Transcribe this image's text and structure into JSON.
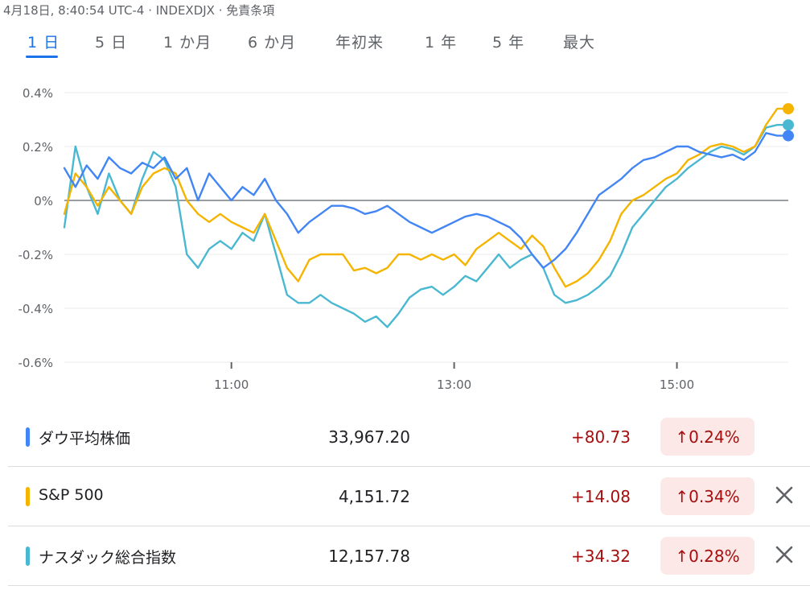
{
  "header": {
    "timestamp": "4月18日, 8:40:54 UTC-4 · INDEXDJX · 免責条項"
  },
  "tabs": [
    {
      "label": "1 日",
      "active": true
    },
    {
      "label": "5 日",
      "active": false
    },
    {
      "label": "1 か月",
      "active": false
    },
    {
      "label": "6 か月",
      "active": false
    },
    {
      "label": "年初来",
      "active": false
    },
    {
      "label": "1 年",
      "active": false
    },
    {
      "label": "5 年",
      "active": false
    },
    {
      "label": "最大",
      "active": false
    }
  ],
  "colors": {
    "dow": "#4285f4",
    "sp500": "#f4b400",
    "nasdaq": "#4ab8d1",
    "accent": "#1a73e8",
    "up": "#a50e0e",
    "up_bg": "#fce8e6"
  },
  "chart_data": {
    "type": "line",
    "x_unit": "hours",
    "xlim": [
      9.5,
      16.0
    ],
    "ylim": [
      -0.6,
      0.4
    ],
    "yticks": [
      0.4,
      0.2,
      0,
      -0.2,
      -0.4,
      -0.6
    ],
    "ytick_labels": [
      "0.4%",
      "0.2%",
      "0%",
      "-0.2%",
      "-0.4%",
      "-0.6%"
    ],
    "xticks": [
      11,
      13,
      15
    ],
    "xtick_labels": [
      "11:00",
      "13:00",
      "15:00"
    ],
    "baseline": 0,
    "series": [
      {
        "name": "ダウ平均株価",
        "color": "#4285f4",
        "x": [
          9.5,
          9.6,
          9.7,
          9.8,
          9.9,
          10.0,
          10.1,
          10.2,
          10.3,
          10.4,
          10.5,
          10.6,
          10.7,
          10.8,
          10.9,
          11.0,
          11.1,
          11.2,
          11.3,
          11.4,
          11.5,
          11.6,
          11.7,
          11.8,
          11.9,
          12.0,
          12.1,
          12.2,
          12.3,
          12.4,
          12.5,
          12.6,
          12.7,
          12.8,
          12.9,
          13.0,
          13.1,
          13.2,
          13.3,
          13.4,
          13.5,
          13.6,
          13.7,
          13.8,
          13.9,
          14.0,
          14.1,
          14.2,
          14.3,
          14.4,
          14.5,
          14.6,
          14.7,
          14.8,
          14.9,
          15.0,
          15.1,
          15.2,
          15.3,
          15.4,
          15.5,
          15.6,
          15.7,
          15.8,
          15.9,
          16.0
        ],
        "values": [
          0.12,
          0.05,
          0.13,
          0.08,
          0.16,
          0.12,
          0.1,
          0.14,
          0.12,
          0.16,
          0.08,
          0.12,
          0.0,
          0.1,
          0.05,
          0.0,
          0.05,
          0.02,
          0.08,
          0.0,
          -0.05,
          -0.12,
          -0.08,
          -0.05,
          -0.02,
          -0.02,
          -0.03,
          -0.05,
          -0.04,
          -0.02,
          -0.05,
          -0.08,
          -0.1,
          -0.12,
          -0.1,
          -0.08,
          -0.06,
          -0.05,
          -0.06,
          -0.08,
          -0.1,
          -0.14,
          -0.2,
          -0.25,
          -0.22,
          -0.18,
          -0.12,
          -0.05,
          0.02,
          0.05,
          0.08,
          0.12,
          0.15,
          0.16,
          0.18,
          0.2,
          0.2,
          0.18,
          0.17,
          0.16,
          0.17,
          0.15,
          0.18,
          0.25,
          0.24,
          0.24
        ]
      },
      {
        "name": "S&P 500",
        "color": "#f4b400",
        "x": [
          9.5,
          9.6,
          9.7,
          9.8,
          9.9,
          10.0,
          10.1,
          10.2,
          10.3,
          10.4,
          10.5,
          10.6,
          10.7,
          10.8,
          10.9,
          11.0,
          11.1,
          11.2,
          11.3,
          11.4,
          11.5,
          11.6,
          11.7,
          11.8,
          11.9,
          12.0,
          12.1,
          12.2,
          12.3,
          12.4,
          12.5,
          12.6,
          12.7,
          12.8,
          12.9,
          13.0,
          13.1,
          13.2,
          13.3,
          13.4,
          13.5,
          13.6,
          13.7,
          13.8,
          13.9,
          14.0,
          14.1,
          14.2,
          14.3,
          14.4,
          14.5,
          14.6,
          14.7,
          14.8,
          14.9,
          15.0,
          15.1,
          15.2,
          15.3,
          15.4,
          15.5,
          15.6,
          15.7,
          15.8,
          15.9,
          16.0
        ],
        "values": [
          -0.05,
          0.1,
          0.05,
          -0.02,
          0.05,
          0.0,
          -0.05,
          0.05,
          0.1,
          0.12,
          0.1,
          0.0,
          -0.05,
          -0.08,
          -0.05,
          -0.08,
          -0.1,
          -0.12,
          -0.05,
          -0.15,
          -0.25,
          -0.3,
          -0.22,
          -0.2,
          -0.2,
          -0.2,
          -0.26,
          -0.25,
          -0.27,
          -0.25,
          -0.2,
          -0.2,
          -0.22,
          -0.2,
          -0.22,
          -0.2,
          -0.24,
          -0.18,
          -0.15,
          -0.12,
          -0.15,
          -0.18,
          -0.13,
          -0.17,
          -0.25,
          -0.32,
          -0.3,
          -0.27,
          -0.22,
          -0.15,
          -0.05,
          0.0,
          0.02,
          0.05,
          0.08,
          0.1,
          0.15,
          0.17,
          0.2,
          0.21,
          0.2,
          0.18,
          0.2,
          0.28,
          0.34,
          0.34
        ]
      },
      {
        "name": "ナスダック総合指数",
        "color": "#4ab8d1",
        "x": [
          9.5,
          9.6,
          9.7,
          9.8,
          9.9,
          10.0,
          10.1,
          10.2,
          10.3,
          10.4,
          10.5,
          10.6,
          10.7,
          10.8,
          10.9,
          11.0,
          11.1,
          11.2,
          11.3,
          11.4,
          11.5,
          11.6,
          11.7,
          11.8,
          11.9,
          12.0,
          12.1,
          12.2,
          12.3,
          12.4,
          12.5,
          12.6,
          12.7,
          12.8,
          12.9,
          13.0,
          13.1,
          13.2,
          13.3,
          13.4,
          13.5,
          13.6,
          13.7,
          13.8,
          13.9,
          14.0,
          14.1,
          14.2,
          14.3,
          14.4,
          14.5,
          14.6,
          14.7,
          14.8,
          14.9,
          15.0,
          15.1,
          15.2,
          15.3,
          15.4,
          15.5,
          15.6,
          15.7,
          15.8,
          15.9,
          16.0
        ],
        "values": [
          -0.1,
          0.2,
          0.05,
          -0.05,
          0.1,
          0.0,
          -0.05,
          0.08,
          0.18,
          0.15,
          0.05,
          -0.2,
          -0.25,
          -0.18,
          -0.15,
          -0.18,
          -0.12,
          -0.15,
          -0.05,
          -0.2,
          -0.35,
          -0.38,
          -0.38,
          -0.35,
          -0.38,
          -0.4,
          -0.42,
          -0.45,
          -0.43,
          -0.47,
          -0.42,
          -0.36,
          -0.33,
          -0.32,
          -0.35,
          -0.32,
          -0.28,
          -0.3,
          -0.25,
          -0.2,
          -0.25,
          -0.22,
          -0.2,
          -0.25,
          -0.35,
          -0.38,
          -0.37,
          -0.35,
          -0.32,
          -0.28,
          -0.2,
          -0.1,
          -0.05,
          0.0,
          0.05,
          0.08,
          0.12,
          0.15,
          0.18,
          0.2,
          0.19,
          0.17,
          0.2,
          0.27,
          0.28,
          0.28
        ]
      }
    ]
  },
  "table": {
    "rows": [
      {
        "name": "ダウ平均株価",
        "price": "33,967.20",
        "change": "+80.73",
        "pct": "↑0.24%",
        "closable": false
      },
      {
        "name": "S&P 500",
        "price": "4,151.72",
        "change": "+14.08",
        "pct": "↑0.34%",
        "closable": true
      },
      {
        "name": "ナスダック総合指数",
        "price": "12,157.78",
        "change": "+34.32",
        "pct": "↑0.28%",
        "closable": true
      }
    ]
  }
}
